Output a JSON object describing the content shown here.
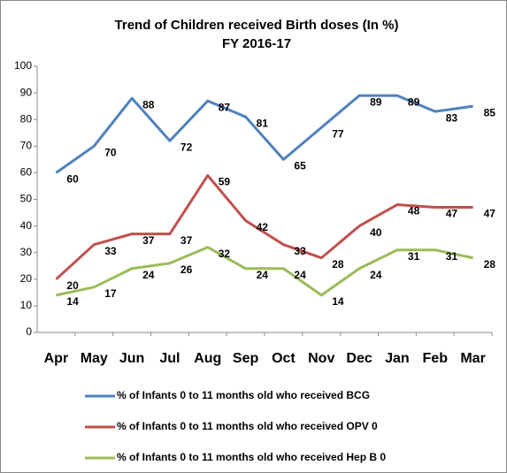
{
  "chart_data": {
    "type": "line",
    "title": "Trend of Children received Birth doses (In %)",
    "subtitle": "FY 2016-17",
    "categories": [
      "Apr",
      "May",
      "Jun",
      "Jul",
      "Aug",
      "Sep",
      "Oct",
      "Nov",
      "Dec",
      "Jan",
      "Feb",
      "Mar"
    ],
    "series": [
      {
        "name": "% of Infants 0 to 11 months old who received BCG",
        "color": "#4f81bd",
        "values": [
          60,
          70,
          88,
          72,
          87,
          81,
          65,
          77,
          89,
          89,
          83,
          85
        ]
      },
      {
        "name": "% of Infants 0 to 11 months old who received OPV 0",
        "color": "#c0504d",
        "values": [
          20,
          33,
          37,
          37,
          59,
          42,
          33,
          28,
          40,
          48,
          47,
          47
        ]
      },
      {
        "name": "% of Infants 0 to 11 months old who received Hep B 0",
        "color": "#9bbb59",
        "values": [
          14,
          17,
          24,
          26,
          32,
          24,
          24,
          14,
          24,
          31,
          31,
          28
        ]
      }
    ],
    "ylim": [
      0,
      100
    ],
    "yticks": [
      0,
      10,
      20,
      30,
      40,
      50,
      60,
      70,
      80,
      90,
      100
    ],
    "grid": false,
    "legend": "bottom"
  }
}
